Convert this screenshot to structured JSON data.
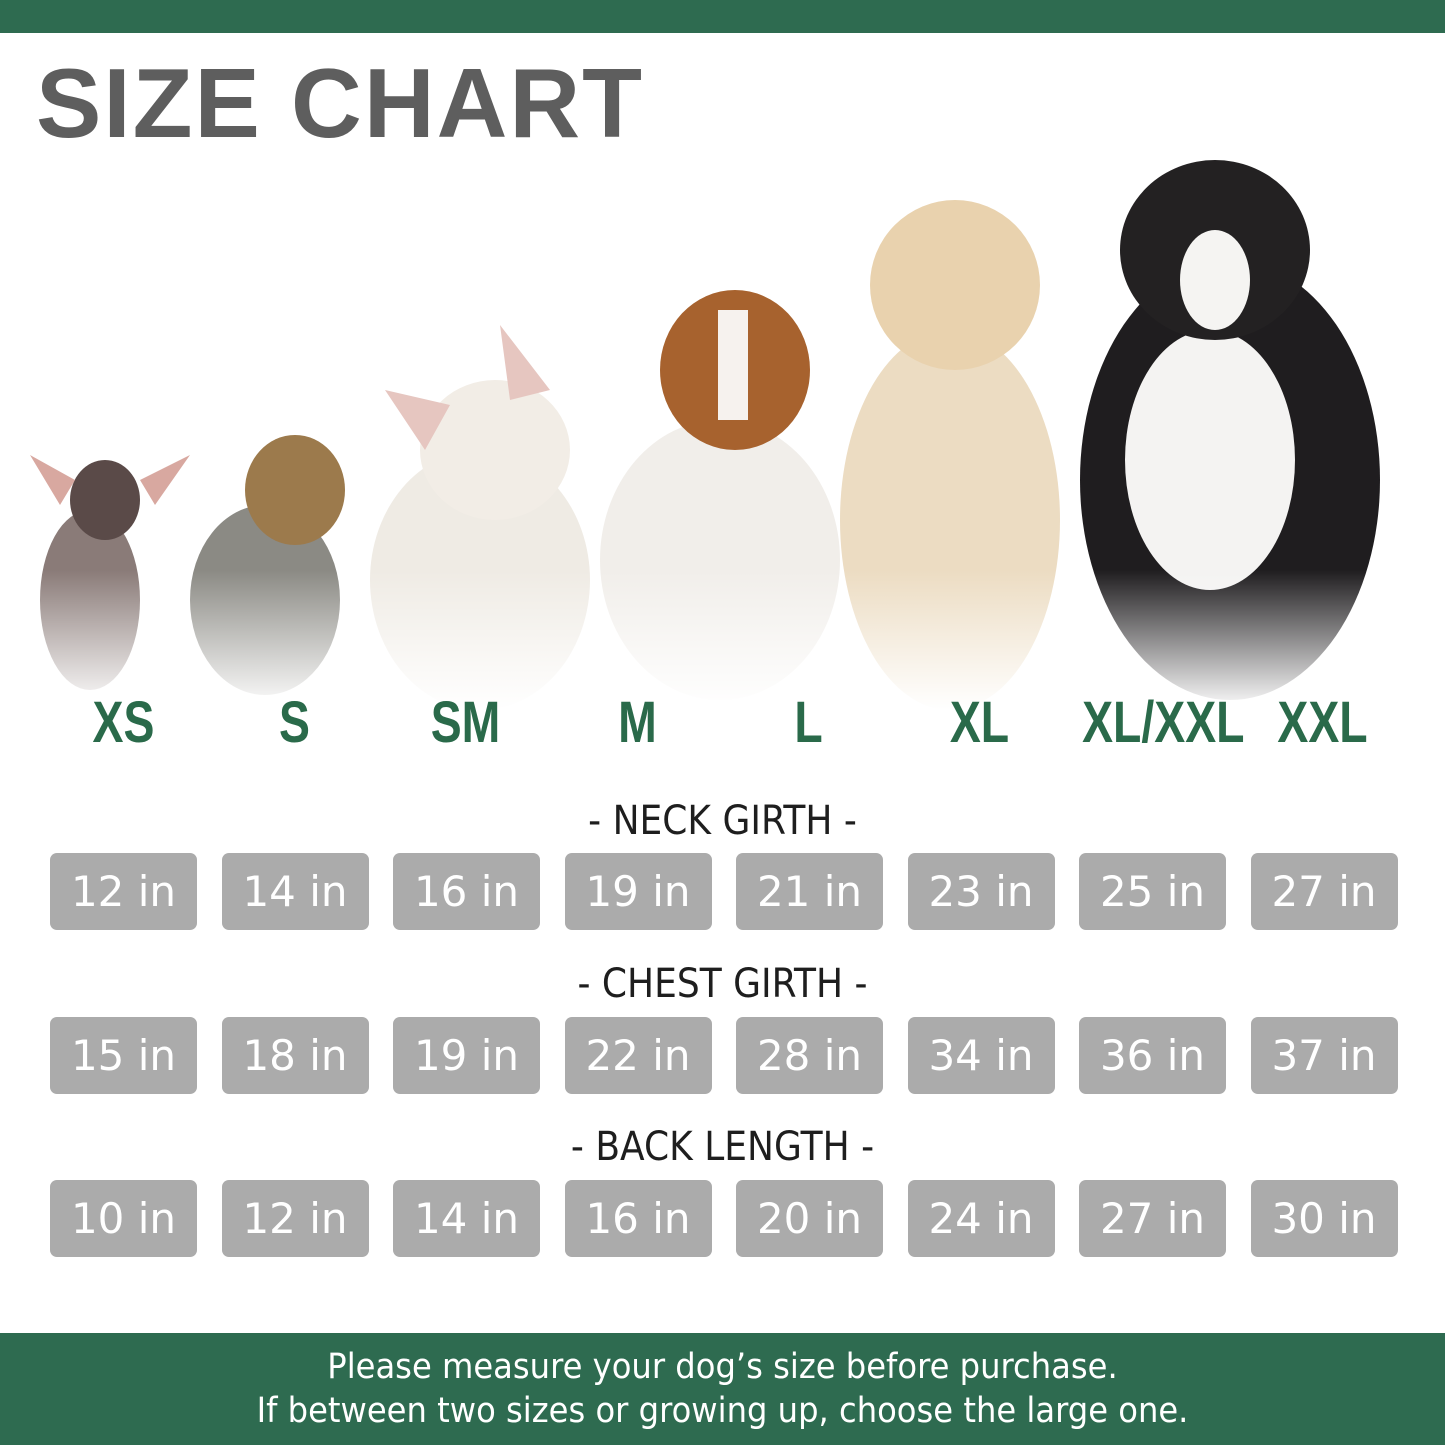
{
  "title": "SIZE CHART",
  "colors": {
    "brand_green": "#2e6b50",
    "box_gray": "#ababab",
    "title_gray": "#5e5e5e"
  },
  "sizes": [
    "XS",
    "S",
    "SM",
    "M",
    "L",
    "XL",
    "XL/XXL",
    "XXL"
  ],
  "rows": [
    {
      "label": "- NECK GIRTH -",
      "values": [
        "12 in",
        "14 in",
        "16 in",
        "19 in",
        "21 in",
        "23 in",
        "25 in",
        "27 in"
      ]
    },
    {
      "label": "- CHEST GIRTH -",
      "values": [
        "15 in",
        "18 in",
        "19 in",
        "22 in",
        "28 in",
        "34 in",
        "36 in",
        "37 in"
      ]
    },
    {
      "label": "- BACK LENGTH -",
      "values": [
        "10 in",
        "12 in",
        "14 in",
        "16 in",
        "20 in",
        "24 in",
        "27 in",
        "30 in"
      ]
    }
  ],
  "footer": {
    "line1": "Please measure your dog’s size before purchase.",
    "line2": "If between two sizes or growing up, choose the large one."
  }
}
